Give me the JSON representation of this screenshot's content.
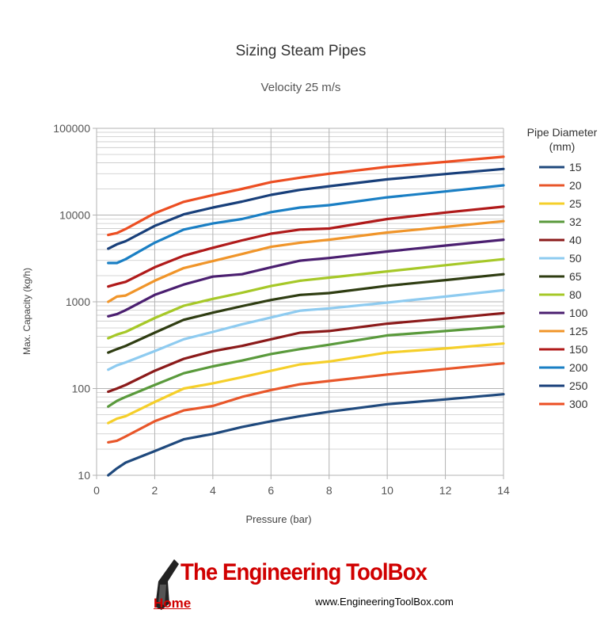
{
  "chart_data": {
    "type": "line",
    "title": "Sizing Steam Pipes",
    "subtitle": "Velocity 25 m/s",
    "xlabel": "Pressure (bar)",
    "ylabel": "Max. Capacity (kg/h)",
    "xlim": [
      0,
      14
    ],
    "ylim": [
      10,
      100000
    ],
    "yscale": "log",
    "grid": true,
    "x_ticks": [
      "0",
      "2",
      "4",
      "6",
      "8",
      "10",
      "12",
      "14"
    ],
    "y_ticks": [
      "10",
      "100",
      "1000",
      "10000",
      "100000"
    ],
    "legend": {
      "title": "Pipe Diameter (mm)",
      "title_lines": [
        "Pipe Diameter",
        "(mm)"
      ],
      "position": "right"
    },
    "x": [
      0.4,
      0.7,
      1,
      2,
      3,
      4,
      5,
      6,
      7,
      8,
      10,
      12,
      14
    ],
    "series": [
      {
        "name": "15",
        "color": "#1f497d",
        "values": [
          10,
          12,
          14,
          19,
          26,
          30,
          36,
          42,
          48,
          54,
          66,
          75,
          86
        ]
      },
      {
        "name": "20",
        "color": "#e8562a",
        "values": [
          24,
          25,
          28,
          42,
          56,
          63,
          80,
          96,
          112,
          122,
          145,
          168,
          195
        ]
      },
      {
        "name": "25",
        "color": "#f5cf2a",
        "values": [
          40,
          45,
          48,
          70,
          100,
          115,
          135,
          160,
          190,
          205,
          260,
          290,
          330
        ]
      },
      {
        "name": "32",
        "color": "#5a9a3c",
        "values": [
          62,
          72,
          80,
          110,
          150,
          180,
          210,
          250,
          285,
          320,
          410,
          460,
          520
        ]
      },
      {
        "name": "40",
        "color": "#8b1a1a",
        "values": [
          92,
          100,
          110,
          160,
          220,
          270,
          310,
          370,
          440,
          460,
          560,
          640,
          740
        ]
      },
      {
        "name": "50",
        "color": "#8ecbf0",
        "values": [
          165,
          185,
          200,
          270,
          370,
          450,
          550,
          660,
          790,
          840,
          980,
          1150,
          1360
        ]
      },
      {
        "name": "65",
        "color": "#2f3d12",
        "values": [
          260,
          285,
          310,
          440,
          620,
          750,
          890,
          1050,
          1200,
          1260,
          1530,
          1780,
          2080
        ]
      },
      {
        "name": "80",
        "color": "#a6c828",
        "values": [
          380,
          420,
          450,
          650,
          900,
          1080,
          1270,
          1520,
          1750,
          1900,
          2240,
          2640,
          3100
        ]
      },
      {
        "name": "100",
        "color": "#4b1f70",
        "values": [
          680,
          720,
          800,
          1200,
          1580,
          1950,
          2080,
          2500,
          2980,
          3200,
          3800,
          4450,
          5200
        ]
      },
      {
        "name": "125",
        "color": "#f0952a",
        "values": [
          1000,
          1150,
          1180,
          1750,
          2450,
          2950,
          3550,
          4300,
          4800,
          5200,
          6300,
          7300,
          8500
        ]
      },
      {
        "name": "150",
        "color": "#b01a1a",
        "values": [
          1500,
          1600,
          1700,
          2500,
          3400,
          4200,
          5100,
          6100,
          6800,
          7000,
          9000,
          10700,
          12500
        ]
      },
      {
        "name": "200",
        "color": "#1a7fc4",
        "values": [
          2800,
          2800,
          3100,
          4800,
          6800,
          8000,
          9000,
          10800,
          12200,
          13000,
          16000,
          18700,
          22000
        ]
      },
      {
        "name": "250",
        "color": "#183f7a",
        "values": [
          4100,
          4600,
          5000,
          7500,
          10200,
          12200,
          14300,
          17100,
          19500,
          21500,
          25800,
          29700,
          34000
        ]
      },
      {
        "name": "300",
        "color": "#ec4e22",
        "values": [
          5900,
          6200,
          6900,
          10500,
          14200,
          17000,
          20000,
          24000,
          27000,
          30000,
          36000,
          41000,
          47000
        ]
      }
    ]
  },
  "footer": {
    "brand": "The Engineering ToolBox",
    "home_label": "Home",
    "site_url": "www.EngineeringToolBox.com"
  }
}
